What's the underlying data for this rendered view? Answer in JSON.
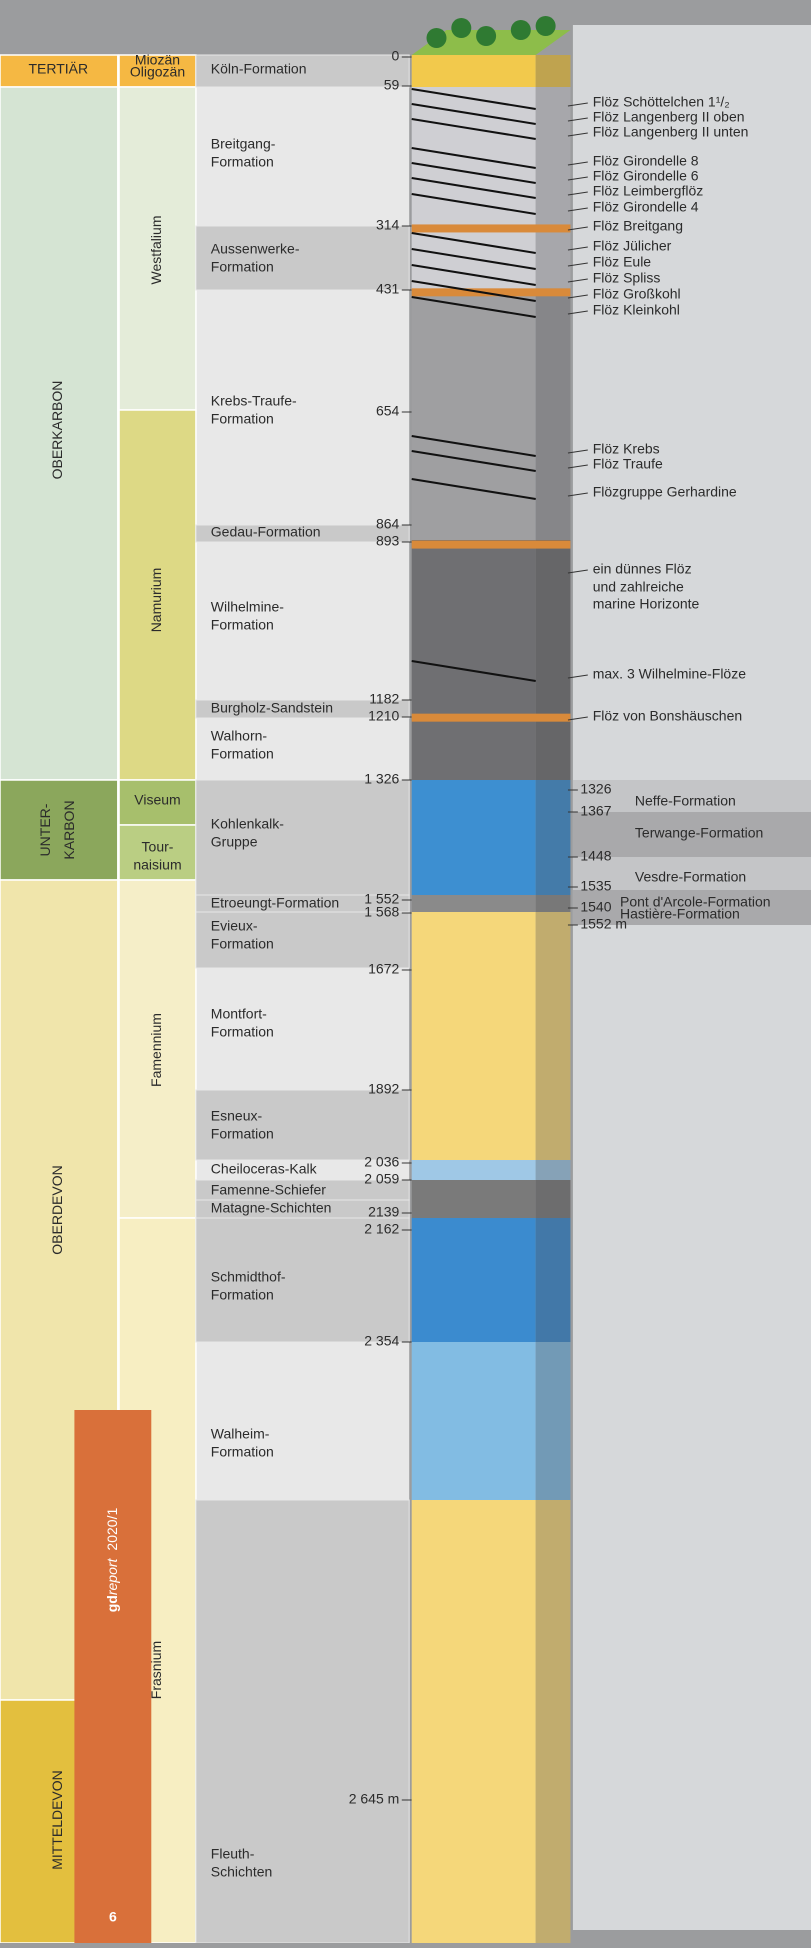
{
  "eras": [
    {
      "lines": [
        "TERTIÄR"
      ]
    },
    {
      "lines": [
        "OBERKARBON"
      ]
    },
    {
      "lines": [
        "UNTER-",
        "KARBON"
      ]
    },
    {
      "lines": [
        "OBERDEVON"
      ]
    },
    {
      "lines": [
        "MITTELDEVON"
      ]
    }
  ],
  "epochs": [
    {
      "lines": [
        "Miozän",
        "Oligozän"
      ]
    },
    {
      "lines": [
        "Westfalium"
      ]
    },
    {
      "lines": [
        "Namurium"
      ]
    },
    {
      "lines": [
        "Viseum"
      ]
    },
    {
      "lines": [
        "Tour-",
        "naisium"
      ]
    },
    {
      "lines": [
        "Famennium"
      ]
    },
    {
      "lines": [
        "Frasnium"
      ]
    }
  ],
  "formations": [
    {
      "lines": [
        "Köln-Formation"
      ]
    },
    {
      "lines": [
        "Breitgang-",
        "Formation"
      ]
    },
    {
      "lines": [
        "Aussenwerke-",
        "Formation"
      ]
    },
    {
      "lines": [
        "Krebs-Traufe-",
        "Formation"
      ]
    },
    {
      "lines": [
        "Gedau-Formation"
      ]
    },
    {
      "lines": [
        "Wilhelmine-",
        "Formation"
      ]
    },
    {
      "lines": [
        "Burgholz-Sandstein"
      ]
    },
    {
      "lines": [
        "Walhorn-",
        "Formation"
      ]
    },
    {
      "lines": [
        "Kohlenkalk-",
        "Gruppe"
      ]
    },
    {
      "lines": [
        "Etroeungt-Formation"
      ]
    },
    {
      "lines": [
        "Evieux-",
        "Formation"
      ]
    },
    {
      "lines": [
        "Montfort-",
        "Formation"
      ]
    },
    {
      "lines": [
        "Esneux-",
        "Formation"
      ]
    },
    {
      "lines": [
        "Cheiloceras-Kalk"
      ]
    },
    {
      "lines": [
        "Famenne-Schiefer"
      ]
    },
    {
      "lines": [
        "Matagne-Schichten"
      ]
    },
    {
      "lines": [
        "Schmidthof-",
        "Formation"
      ]
    },
    {
      "lines": [
        "Walheim-",
        "Formation"
      ]
    },
    {
      "lines": [
        "Fleuth-",
        "Schichten"
      ]
    }
  ],
  "depths": [
    "0",
    "59",
    "314",
    "431",
    "654",
    "864",
    "893",
    "1182",
    "1210",
    "1 326",
    "1 552",
    "1 568",
    "1672",
    "1892",
    "2 036",
    "2 059",
    "2139",
    "2 162",
    "2 354",
    "2 645 m"
  ],
  "seams": [
    "Flöz Schöttelchen 1¹/₂",
    "Flöz Langenberg II oben",
    "Flöz Langenberg II unten",
    "Flöz Girondelle 8",
    "Flöz Girondelle 6",
    "Flöz Leimbergflöz",
    "Flöz Girondelle 4",
    "Flöz Breitgang",
    "Flöz Jülicher",
    "Flöz Eule",
    "Flöz Spliss",
    "Flöz Großkohl",
    "Flöz Kleinkohl",
    "Flöz Krebs",
    "Flöz Traufe",
    "Flözgruppe Gerhardine",
    "ein dünnes Flöz",
    "und zahlreiche",
    "marine Horizonte",
    "max. 3 Wilhelmine-Flöze",
    "Flöz von Bonshäuschen"
  ],
  "right_depths": [
    "1326",
    "1367",
    "1448",
    "1535",
    "1540",
    "1552 m"
  ],
  "right_formations": [
    "Neffe-Formation",
    "Terwange-Formation",
    "Vesdre-Formation",
    "Pont d'Arcole-Formation",
    "Hastière-Formation"
  ],
  "badge": {
    "brand_bold": "gd",
    "brand_italic": "report",
    "issue": "2020/1",
    "page": "6"
  }
}
